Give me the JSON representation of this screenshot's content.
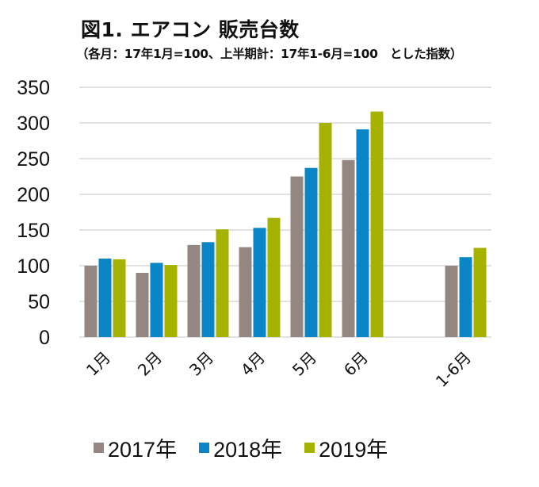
{
  "chart_data": {
    "type": "bar",
    "title": "図1. エアコン 販売台数",
    "subtitle": "（各月：17年1月=100、上半期計：17年1-6月=100　とした指数）",
    "xlabel": "",
    "ylabel": "",
    "ylim": [
      0,
      350
    ],
    "yticks": [
      "0",
      "50",
      "100",
      "150",
      "200",
      "250",
      "300",
      "350"
    ],
    "grid": true,
    "legend_position": "bottom",
    "categories": [
      "1月",
      "2月",
      "3月",
      "4月",
      "5月",
      "6月",
      "",
      "1-6月"
    ],
    "series": [
      {
        "name": "2017年",
        "color": "#948680",
        "values": [
          100,
          90,
          129,
          126,
          225,
          248,
          null,
          100
        ]
      },
      {
        "name": "2018年",
        "color": "#0a86c6",
        "values": [
          110,
          104,
          133,
          153,
          237,
          291,
          null,
          112
        ]
      },
      {
        "name": "2019年",
        "color": "#a5b300",
        "values": [
          109,
          101,
          151,
          167,
          300,
          316,
          null,
          125
        ]
      }
    ]
  }
}
